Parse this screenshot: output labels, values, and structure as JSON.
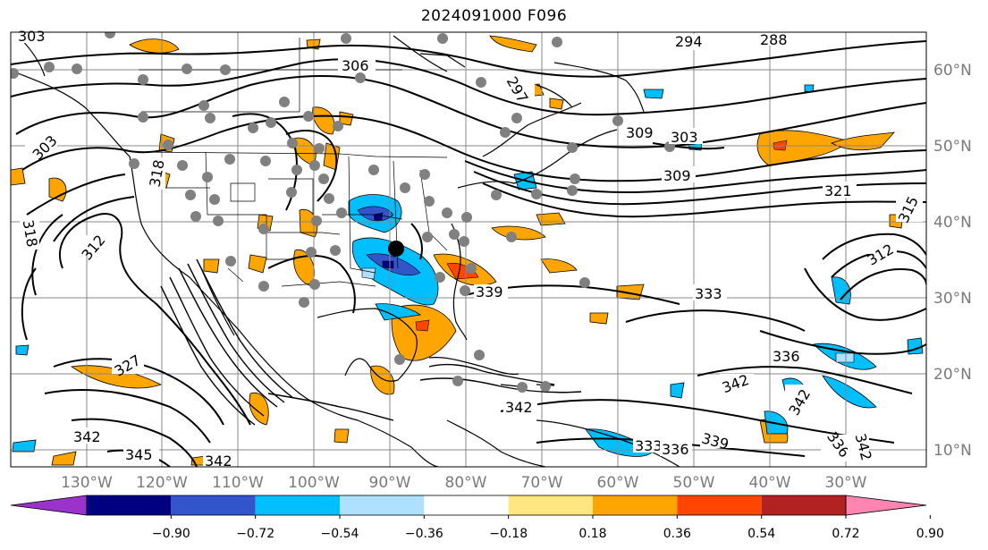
{
  "title": "2024091000 F096",
  "lon_labels": [
    "130°W",
    "120°W",
    "110°W",
    "100°W",
    "90°W",
    "80°W",
    "70°W",
    "60°W",
    "50°W",
    "40°W",
    "30°W"
  ],
  "lat_labels": [
    "60°N",
    "50°N",
    "40°N",
    "30°N",
    "20°N",
    "10°N"
  ],
  "colorbar": {
    "ticks": [
      "−0.90",
      "−0.72",
      "−0.54",
      "−0.36",
      "−0.18",
      "0.18",
      "0.36",
      "0.54",
      "0.72",
      "0.90"
    ],
    "colors": [
      "#9933cc",
      "#000080",
      "#3355cc",
      "#00bfff",
      "#aee0ff",
      "#ffffff",
      "#ffe680",
      "#ffa500",
      "#ff4500",
      "#b22222",
      "#ff85b0"
    ],
    "extend": "both"
  },
  "contour_labels": [
    {
      "text": "303"
    },
    {
      "text": "306"
    },
    {
      "text": "297"
    },
    {
      "text": "294"
    },
    {
      "text": "288"
    },
    {
      "text": "309"
    },
    {
      "text": "303"
    },
    {
      "text": "303"
    },
    {
      "text": "318"
    },
    {
      "text": "312"
    },
    {
      "text": "318"
    },
    {
      "text": "309"
    },
    {
      "text": "321"
    },
    {
      "text": "315"
    },
    {
      "text": "312"
    },
    {
      "text": "339"
    },
    {
      "text": "333"
    },
    {
      "text": "342"
    },
    {
      "text": "342"
    },
    {
      "text": "339"
    },
    {
      "text": "336"
    },
    {
      "text": "342"
    },
    {
      "text": "333"
    },
    {
      "text": "345"
    },
    {
      "text": "342"
    },
    {
      "text": "342"
    },
    {
      "text": "327"
    },
    {
      "text": "336"
    },
    {
      "text": "336"
    },
    {
      "text": "342"
    }
  ],
  "colors": {
    "contour": "#000000",
    "grid": "#888888",
    "station": "#808080",
    "storm": "#000000"
  }
}
